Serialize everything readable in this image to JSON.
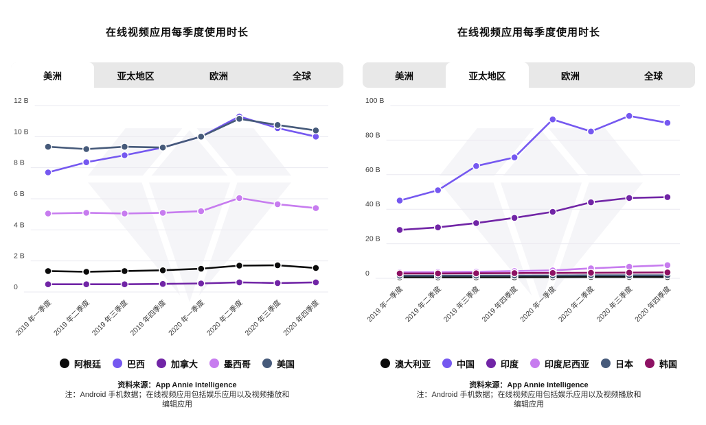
{
  "chart_data": [
    {
      "type": "line",
      "title": "在线视频应用每季度使用时长",
      "tabs": [
        {
          "id": "americas",
          "label": "美洲",
          "active": true
        },
        {
          "id": "asia-pacific",
          "label": "亚太地区",
          "active": false
        },
        {
          "id": "europe",
          "label": "欧洲",
          "active": false
        },
        {
          "id": "global",
          "label": "全球",
          "active": false
        }
      ],
      "x": [
        "2019 年一季度",
        "2019 年二季度",
        "2019 年三季度",
        "2019 年四季度",
        "2020 年一季度",
        "2020 年二季度",
        "2020 年三季度",
        "2020 年四季度"
      ],
      "series": [
        {
          "id": "argentina",
          "name": "阿根廷",
          "color": "#0B0B0B",
          "values": [
            1.35,
            1.3,
            1.35,
            1.4,
            1.5,
            1.7,
            1.72,
            1.55
          ]
        },
        {
          "id": "brazil",
          "name": "巴西",
          "color": "#7558F0",
          "values": [
            7.7,
            8.35,
            8.8,
            9.3,
            10.0,
            11.3,
            10.55,
            10.0
          ]
        },
        {
          "id": "canada",
          "name": "加拿大",
          "color": "#7125A6",
          "values": [
            0.5,
            0.5,
            0.5,
            0.52,
            0.55,
            0.62,
            0.58,
            0.62
          ]
        },
        {
          "id": "mexico",
          "name": "墨西哥",
          "color": "#C77CEF",
          "values": [
            5.05,
            5.1,
            5.05,
            5.1,
            5.2,
            6.05,
            5.65,
            5.4
          ]
        },
        {
          "id": "usa",
          "name": "美国",
          "color": "#465A7A",
          "values": [
            9.35,
            9.2,
            9.35,
            9.3,
            10.0,
            11.15,
            10.75,
            10.4
          ]
        }
      ],
      "ylim": [
        0,
        12
      ],
      "y_ticks": [
        {
          "value": 0,
          "label": "0"
        },
        {
          "value": 2,
          "label": "2 B"
        },
        {
          "value": 4,
          "label": "4 B"
        },
        {
          "value": 6,
          "label": "6 B"
        },
        {
          "value": 8,
          "label": "8 B"
        },
        {
          "value": 10,
          "label": "10 B"
        },
        {
          "value": 12,
          "label": "12 B"
        }
      ],
      "grid": true,
      "legend_position": "bottom",
      "source": "资料来源：App Annie Intelligence",
      "notes": [
        "注：Android 手机数据；在线视频应用包括娱乐应用以及视频播放和",
        "编辑应用"
      ]
    },
    {
      "type": "line",
      "title": "在线视频应用每季度使用时长",
      "tabs": [
        {
          "id": "americas",
          "label": "美洲",
          "active": false
        },
        {
          "id": "asia-pacific",
          "label": "亚太地区",
          "active": true
        },
        {
          "id": "europe",
          "label": "欧洲",
          "active": false
        },
        {
          "id": "global",
          "label": "全球",
          "active": false
        }
      ],
      "x": [
        "2019 年一季度",
        "2019 年二季度",
        "2019 年三季度",
        "2019 年四季度",
        "2020 年一季度",
        "2020 年二季度",
        "2020 年三季度",
        "2020 年四季度"
      ],
      "series": [
        {
          "id": "australia",
          "name": "澳大利亚",
          "color": "#0B0B0B",
          "values": [
            0.6,
            0.6,
            0.65,
            0.65,
            0.7,
            0.8,
            0.8,
            0.75
          ]
        },
        {
          "id": "china",
          "name": "中国",
          "color": "#7558F0",
          "values": [
            45,
            51,
            65,
            70,
            92,
            85,
            94,
            90
          ]
        },
        {
          "id": "india",
          "name": "印度",
          "color": "#7125A6",
          "values": [
            28,
            29.5,
            32,
            35,
            38.5,
            44,
            46.5,
            47
          ]
        },
        {
          "id": "indonesia",
          "name": "印度尼西亚",
          "color": "#C77CEF",
          "values": [
            3.5,
            3.6,
            3.8,
            4.2,
            4.6,
            5.8,
            6.7,
            7.6
          ]
        },
        {
          "id": "japan",
          "name": "日本",
          "color": "#465A7A",
          "values": [
            1.5,
            1.5,
            1.55,
            1.6,
            1.6,
            1.7,
            1.7,
            1.7
          ]
        },
        {
          "id": "south-korea",
          "name": "韩国",
          "color": "#8D1163",
          "values": [
            2.8,
            2.8,
            2.9,
            3.0,
            3.1,
            3.2,
            3.3,
            3.4
          ]
        }
      ],
      "ylim": [
        0,
        100
      ],
      "y_ticks": [
        {
          "value": 0,
          "label": "0"
        },
        {
          "value": 20,
          "label": "20 B"
        },
        {
          "value": 40,
          "label": "40 B"
        },
        {
          "value": 60,
          "label": "60 B"
        },
        {
          "value": 80,
          "label": "80 B"
        },
        {
          "value": 100,
          "label": "100 B"
        }
      ],
      "grid": true,
      "legend_position": "bottom",
      "source": "资料来源：App Annie Intelligence",
      "notes": [
        "注：Android 手机数据；在线视频应用包括娱乐应用以及视频播放和",
        "编辑应用"
      ]
    }
  ]
}
